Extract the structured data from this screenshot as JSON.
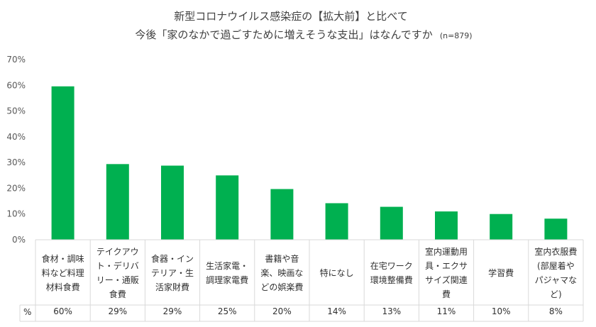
{
  "title_line1": "新型コロナウイルス感染症の【拡大前】と比べて",
  "title_line2": "今後「家のなかで過ごすために増えそうな支出」はなんですか",
  "sample_note": "(n=879)",
  "table_row_label": "%",
  "colors": {
    "bar": "#00b050",
    "grid": "#d9d9d9",
    "text": "#404040"
  },
  "chart_data": {
    "type": "bar",
    "categories": [
      "食材・調味料など料理材料食費",
      "テイクアウト・デリバリー・通販食費",
      "食器・インテリア・生活家財費",
      "生活家電・調理家電費",
      "書籍や音楽、映画などの娯楽費",
      "特になし",
      "在宅ワーク環境整備費",
      "室内運動用具・エクササイズ関連費",
      "学習費",
      "室内衣服費(部屋着やパジャマなど)"
    ],
    "category_display": [
      "食材・調味\n料など料理\n材料食費",
      "テイクアウ\nト・デリバ\nリー・通販\n食費",
      "食器・イン\nテリア・生\n活家財費",
      "生活家電・\n調理家電費",
      "書籍や音\n楽、映画な\nどの娯楽費",
      "特になし",
      "在宅ワーク\n環境整備費",
      "室内運動用\n具・エクサ\nサイズ関連\n費",
      "学習費",
      "室内衣服費\n(部屋着や\nパジャマな\nど)"
    ],
    "values": [
      59.6,
      29.4,
      28.8,
      25.0,
      19.7,
      14.2,
      12.8,
      11.0,
      10.0,
      8.2
    ],
    "value_labels": [
      "60%",
      "29%",
      "29%",
      "25%",
      "20%",
      "14%",
      "13%",
      "11%",
      "10%",
      "8%"
    ],
    "ylim": [
      0,
      70
    ],
    "yticks": [
      "0%",
      "10%",
      "20%",
      "30%",
      "40%",
      "50%",
      "60%",
      "70%"
    ],
    "ytick_values": [
      0,
      10,
      20,
      30,
      40,
      50,
      60,
      70
    ],
    "grid": false
  }
}
